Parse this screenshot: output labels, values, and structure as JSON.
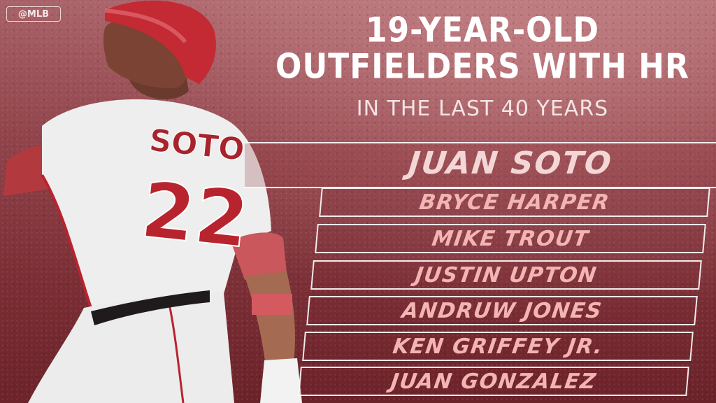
{
  "logo": {
    "text": "@MLB"
  },
  "headline": {
    "line1": "19-YEAR-OLD",
    "line2": "OUTFIELDERS WITH HR",
    "subtitle": "IN THE LAST 40 YEARS"
  },
  "player": {
    "jersey_name": "SOTO",
    "jersey_number": "22"
  },
  "featured": {
    "name": "JUAN SOTO"
  },
  "list": [
    "BRYCE HARPER",
    "MIKE TROUT",
    "JUSTIN UPTON",
    "ANDRUW JONES",
    "KEN GRIFFEY JR.",
    "JUAN GONZALEZ"
  ],
  "colors": {
    "background": "#94484f",
    "accent_text": "#f3b4b4",
    "jersey_red": "#b8242e"
  }
}
